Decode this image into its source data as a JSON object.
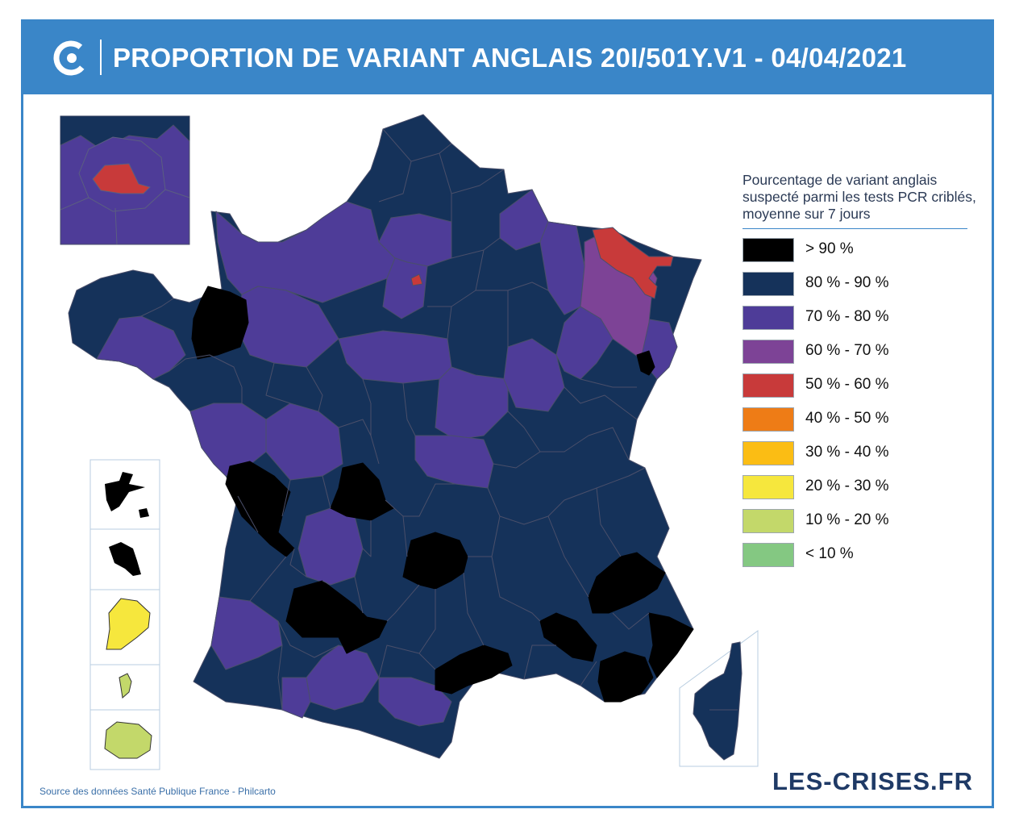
{
  "header": {
    "title": "PROPORTION DE VARIANT ANGLAIS 20I/501Y.V1 - 04/04/2021",
    "logo_icon": "les-crises-logo-icon"
  },
  "colors": {
    "header_blue": "#3a86c8",
    "border": "#4a4f6a",
    "gt90": "#000000",
    "p80_90": "#15325a",
    "p70_80": "#4e3c98",
    "p60_70": "#7d4396",
    "p50_60": "#c83a3a",
    "p40_50": "#ee7c16",
    "p30_40": "#fbbd14",
    "p20_30": "#f6e73d",
    "p10_20": "#c3d86a",
    "lt10": "#84c882"
  },
  "legend": {
    "title": "Pourcentage de variant anglais suspecté parmi les tests PCR criblés, moyenne sur 7 jours",
    "items": [
      {
        "label": "> 90 %",
        "color": "#000000"
      },
      {
        "label": "80 % - 90 %",
        "color": "#15325a"
      },
      {
        "label": "70 % - 80 %",
        "color": "#4e3c98"
      },
      {
        "label": "60 % - 70 %",
        "color": "#7d4396"
      },
      {
        "label": "50 % - 60 %",
        "color": "#c83a3a"
      },
      {
        "label": "40 % - 50 %",
        "color": "#ee7c16"
      },
      {
        "label": "30 % - 40 %",
        "color": "#fbbd14"
      },
      {
        "label": "20 % - 30 %",
        "color": "#f6e73d"
      },
      {
        "label": "10 % - 20 %",
        "color": "#c3d86a"
      },
      {
        "label": "< 10 %",
        "color": "#84c882"
      }
    ]
  },
  "footer": {
    "source": "Source des données Santé Publique France - Philcarto",
    "brand": "LES-CRISES.FR"
  }
}
